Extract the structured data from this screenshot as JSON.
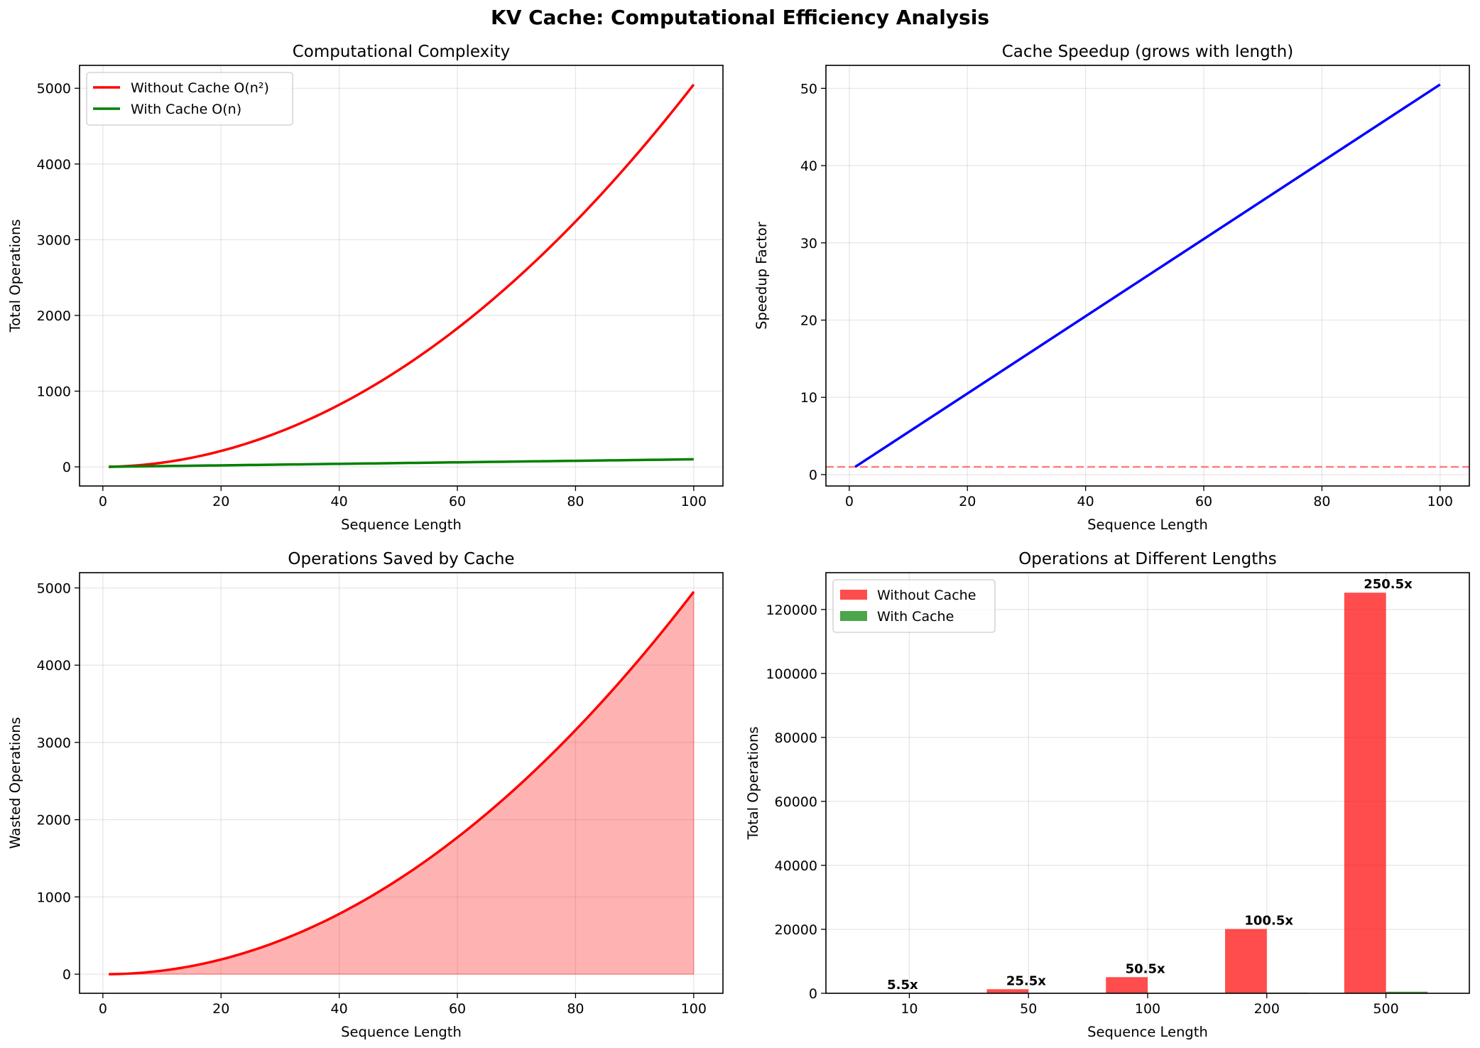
{
  "figure": {
    "title": "KV Cache: Computational Efficiency Analysis"
  },
  "chart_data": [
    {
      "type": "line",
      "title": "Computational Complexity",
      "xlabel": "Sequence Length",
      "ylabel": "Total Operations",
      "xlim": [
        -3.95,
        104.95
      ],
      "ylim": [
        -252.5,
        5302.5
      ],
      "xticks": [
        0,
        20,
        40,
        60,
        80,
        100
      ],
      "yticks": [
        0,
        1000,
        2000,
        3000,
        4000,
        5000
      ],
      "grid": true,
      "legend": "top-left",
      "x": [
        1,
        100
      ],
      "series": [
        {
          "name": "Without Cache O(n²)",
          "formula": "n*(n+1)/2",
          "color": "#ff0000"
        },
        {
          "name": "With Cache O(n)",
          "formula": "n",
          "color": "#008000"
        }
      ]
    },
    {
      "type": "line",
      "title": "Cache Speedup (grows with length)",
      "xlabel": "Sequence Length",
      "ylabel": "Speedup Factor",
      "xlim": [
        -3.95,
        104.95
      ],
      "ylim": [
        -1.475,
        52.975
      ],
      "xticks": [
        0,
        20,
        40,
        60,
        80,
        100
      ],
      "yticks": [
        0,
        10,
        20,
        30,
        40,
        50
      ],
      "grid": true,
      "x": [
        1,
        100
      ],
      "series": [
        {
          "name": "",
          "formula": "(n+1)/2",
          "color": "#0000ff"
        }
      ],
      "reference_line": {
        "y": 1,
        "style": "dashed",
        "color": "#ff0000",
        "alpha": 0.5
      }
    },
    {
      "type": "area",
      "title": "Operations Saved by Cache",
      "xlabel": "Sequence Length",
      "ylabel": "Wasted Operations",
      "xlim": [
        -3.95,
        104.95
      ],
      "ylim": [
        -247.5,
        5197.5
      ],
      "xticks": [
        0,
        20,
        40,
        60,
        80,
        100
      ],
      "yticks": [
        0,
        1000,
        2000,
        3000,
        4000,
        5000
      ],
      "grid": true,
      "x": [
        1,
        100
      ],
      "series": [
        {
          "name": "",
          "formula": "n*(n-1)/2",
          "color": "#ff0000",
          "fill": "#ff0000",
          "fill_alpha": 0.3
        }
      ]
    },
    {
      "type": "bar",
      "title": "Operations at Different Lengths",
      "xlabel": "Sequence Length",
      "ylabel": "Total Operations",
      "ylim": [
        0,
        131512.5
      ],
      "yticks": [
        0,
        20000,
        40000,
        60000,
        80000,
        100000,
        120000
      ],
      "grid": true,
      "legend": "top-left",
      "categories": [
        "10",
        "50",
        "100",
        "200",
        "500"
      ],
      "series": [
        {
          "name": "Without Cache",
          "values": [
            55,
            1275,
            5050,
            20100,
            125250
          ],
          "color": "#ff0000",
          "alpha": 0.7
        },
        {
          "name": "With Cache",
          "values": [
            10,
            50,
            100,
            200,
            500
          ],
          "color": "#008000",
          "alpha": 0.7
        }
      ],
      "annotations": [
        "5.5x",
        "25.5x",
        "50.5x",
        "100.5x",
        "250.5x"
      ]
    }
  ]
}
